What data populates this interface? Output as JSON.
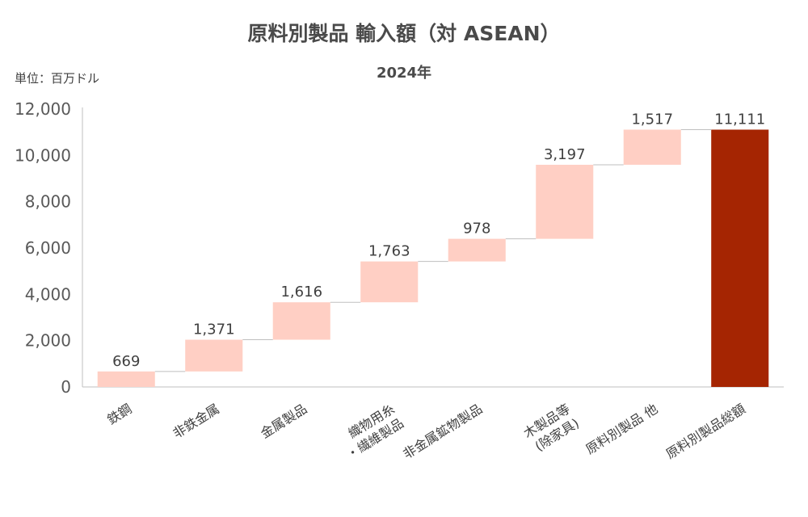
{
  "chart_data": {
    "type": "bar",
    "subtype": "waterfall",
    "title": "原料別製品 輸入額（対 ASEAN）",
    "subtitle": "2024年",
    "unit_label": "単位：百万ドル",
    "ylim": [
      0,
      12000
    ],
    "yticks": [
      "0",
      "2,000",
      "4,000",
      "6,000",
      "8,000",
      "10,000",
      "12,000"
    ],
    "ytick_values": [
      0,
      2000,
      4000,
      6000,
      8000,
      10000,
      12000
    ],
    "categories": [
      [
        "鉄鋼"
      ],
      [
        "非鉄金属"
      ],
      [
        "金属製品"
      ],
      [
        "織物用糸",
        "・繊維製品"
      ],
      [
        "非金属鉱物製品"
      ],
      [
        "木製品等",
        "(除家具)"
      ],
      [
        "原料別製品 他"
      ],
      [
        "原料別製品総額"
      ]
    ],
    "values": [
      669,
      1371,
      1616,
      1763,
      978,
      3197,
      1517,
      11111
    ],
    "value_labels": [
      "669",
      "1,371",
      "1,616",
      "1,763",
      "978",
      "3,197",
      "1,517",
      "11,111"
    ],
    "is_total": [
      false,
      false,
      false,
      false,
      false,
      false,
      false,
      true
    ],
    "colors": {
      "increment": "#ffcfc4",
      "total": "#a52502",
      "connector": "#bfbfbf",
      "axis": "#bfbfbf"
    },
    "grid": false,
    "legend": "none"
  }
}
